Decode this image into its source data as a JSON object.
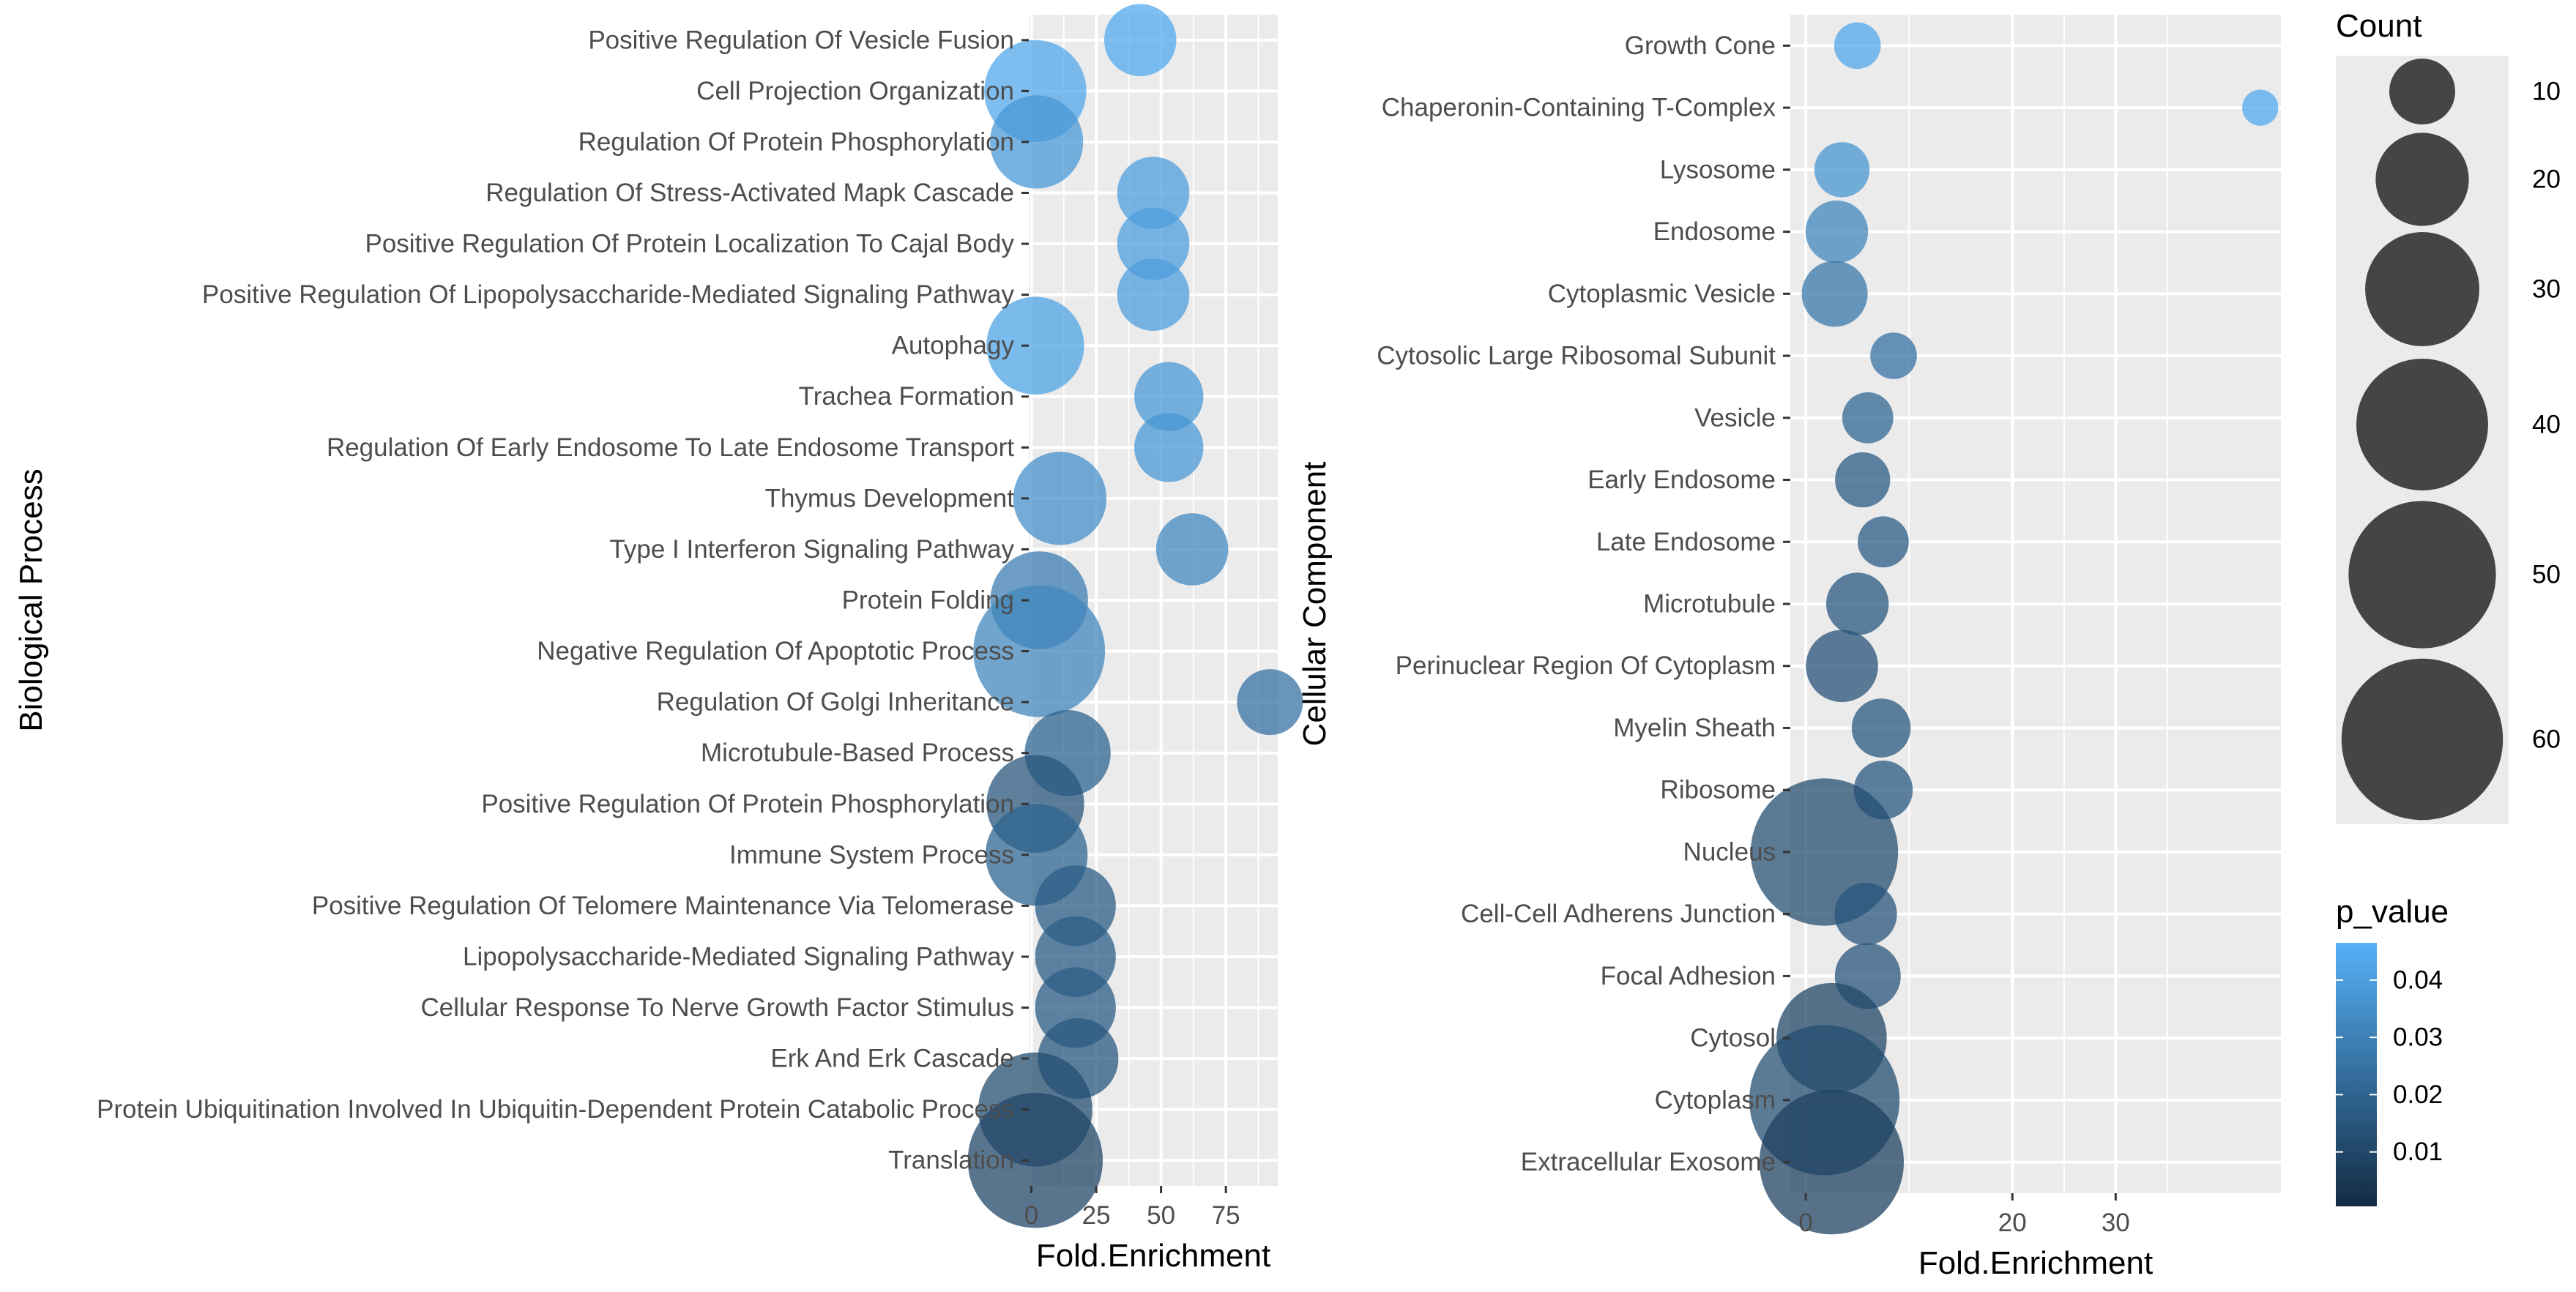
{
  "chart_data": [
    {
      "type": "scatter",
      "xlabel": "Fold.Enrichment",
      "ylabel": "Biological Process",
      "xlim": [
        -1,
        95
      ],
      "xticks": [
        0,
        25,
        50,
        75
      ],
      "grid": true,
      "categories": [
        "Positive Regulation Of Vesicle Fusion",
        "Cell Projection Organization",
        "Regulation Of Protein Phosphorylation",
        "Regulation Of Stress-Activated Mapk Cascade",
        "Positive Regulation Of Protein Localization To Cajal Body",
        "Positive Regulation Of Lipopolysaccharide-Mediated Signaling Pathway",
        "Autophagy",
        "Trachea Formation",
        "Regulation Of Early Endosome To Late Endosome Transport",
        "Thymus Development",
        "Type I Interferon Signaling Pathway",
        "Protein Folding",
        "Negative Regulation Of Apoptotic Process",
        "Regulation Of Golgi Inheritance",
        "Microtubule-Based Process",
        "Positive Regulation Of Protein Phosphorylation",
        "Immune System Process",
        "Positive Regulation Of Telomere Maintenance Via Telomerase",
        "Lipopolysaccharide-Mediated Signaling Pathway",
        "Cellular Response To Nerve Growth Factor Stimulus",
        "Erk And Erk Cascade",
        "Protein Ubiquitination Involved In Ubiquitin-Dependent Protein Catabolic Process",
        "Translation"
      ],
      "x": [
        42,
        1.5,
        2,
        47,
        47,
        47,
        1.5,
        53,
        53,
        11,
        62,
        3,
        3,
        92,
        14,
        1.5,
        2,
        17,
        17,
        17,
        18,
        1.5,
        1.5
      ],
      "count": [
        12,
        24,
        20,
        12,
        12,
        12,
        22,
        11,
        11,
        20,
        12,
        22,
        40,
        10,
        17,
        22,
        24,
        15,
        15,
        15,
        15,
        30,
        42
      ],
      "p_value": [
        0.044,
        0.043,
        0.038,
        0.04,
        0.04,
        0.04,
        0.042,
        0.038,
        0.038,
        0.035,
        0.033,
        0.029,
        0.032,
        0.025,
        0.02,
        0.015,
        0.02,
        0.018,
        0.018,
        0.018,
        0.016,
        0.012,
        0.01
      ]
    },
    {
      "type": "scatter",
      "xlabel": "Fold.Enrichment",
      "ylabel": "Cellular Component",
      "xlim": [
        -1.5,
        46
      ],
      "xticks": [
        0,
        20,
        30
      ],
      "grid": true,
      "categories": [
        "Growth Cone",
        "Chaperonin-Containing T-Complex",
        "Lysosome",
        "Endosome",
        "Cytoplasmic Vesicle",
        "Cytosolic Large Ribosomal Subunit",
        "Vesicle",
        "Early Endosome",
        "Late Endosome",
        "Microtubule",
        "Perinuclear Region Of Cytoplasm",
        "Myelin Sheath",
        "Ribosome",
        "Nucleus",
        "Cell-Cell Adherens Junction",
        "Focal Adhesion",
        "Cytosol",
        "Cytoplasm",
        "Extracellular Exosome"
      ],
      "x": [
        5,
        44,
        3.5,
        3,
        2.8,
        8.5,
        6,
        5.5,
        7.5,
        5,
        3.5,
        7.3,
        7.5,
        1.8,
        5.8,
        6,
        2.5,
        1.8,
        2.5
      ],
      "count": [
        5,
        3,
        7,
        9,
        10,
        5,
        6,
        7,
        6,
        9,
        12,
        8,
        8,
        50,
        9,
        10,
        28,
        52,
        48
      ],
      "p_value": [
        0.043,
        0.044,
        0.037,
        0.032,
        0.027,
        0.025,
        0.021,
        0.017,
        0.018,
        0.016,
        0.014,
        0.016,
        0.016,
        0.012,
        0.015,
        0.015,
        0.01,
        0.012,
        0.008
      ]
    }
  ],
  "legend": {
    "count": {
      "title": "Count",
      "values": [
        10,
        20,
        30,
        40,
        50,
        60
      ]
    },
    "p_value": {
      "title": "p_value",
      "ticks": [
        0.04,
        0.03,
        0.02,
        0.01
      ],
      "range": [
        0.0005,
        0.0465
      ],
      "colors": {
        "low": "#132B43",
        "high": "#56B1F7"
      }
    }
  },
  "colors": {
    "panel": "#EBEBEB",
    "grid": "#FFFFFF",
    "axis_text": "#4D4D4D",
    "title_text": "#000000",
    "legend_bubble": "#333333"
  }
}
